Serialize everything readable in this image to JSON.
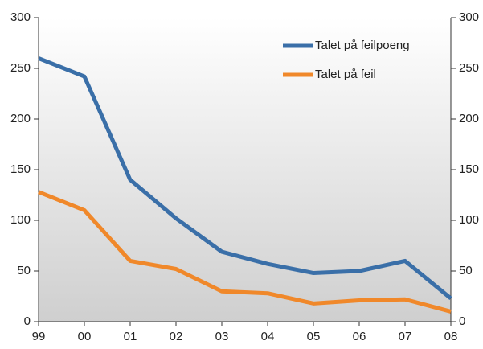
{
  "chart_data": {
    "type": "line",
    "categories": [
      "99",
      "00",
      "01",
      "02",
      "03",
      "04",
      "05",
      "06",
      "07",
      "08"
    ],
    "series": [
      {
        "name": "Talet på feilpoeng",
        "color": "#3a6fa8",
        "values": [
          260,
          242,
          140,
          102,
          69,
          57,
          48,
          50,
          60,
          23
        ]
      },
      {
        "name": "Talet på feil",
        "color": "#f0882a",
        "values": [
          128,
          110,
          60,
          52,
          30,
          28,
          18,
          21,
          22,
          10
        ]
      }
    ],
    "ylim": [
      0,
      300
    ],
    "yticks": [
      0,
      50,
      100,
      150,
      200,
      250,
      300
    ],
    "y2lim": [
      0,
      300
    ],
    "y2ticks": [
      0,
      50,
      100,
      150,
      200,
      250,
      300
    ],
    "legend": "upper right"
  }
}
